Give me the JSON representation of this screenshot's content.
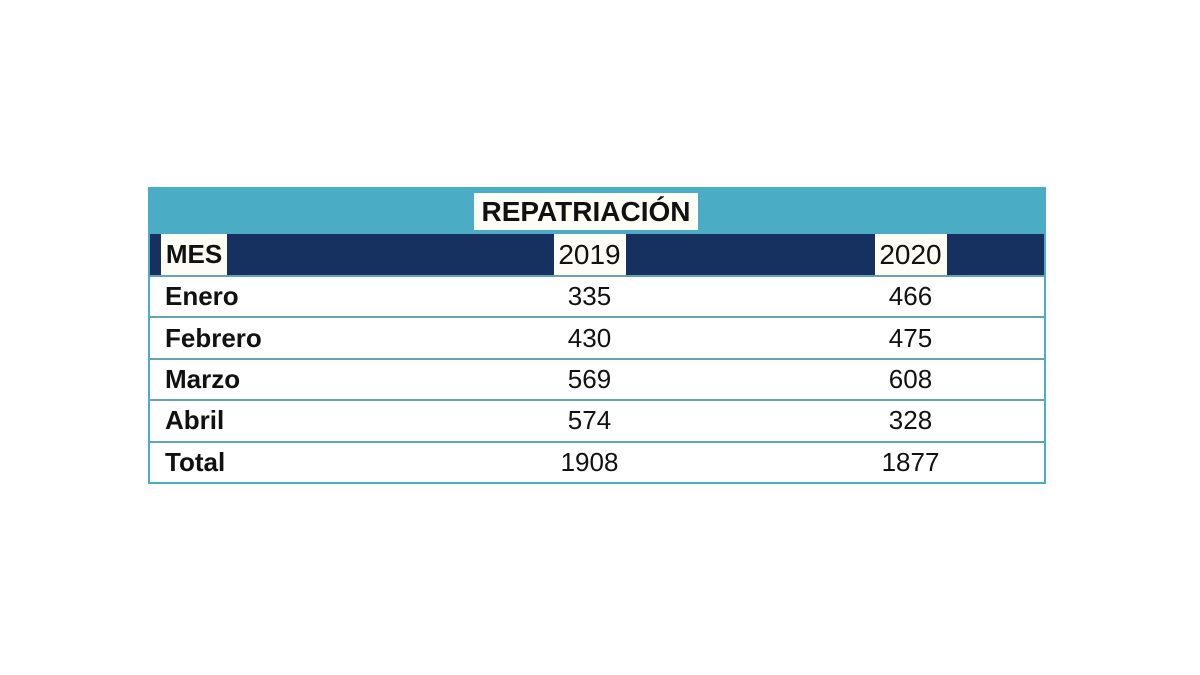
{
  "colors": {
    "title_band_teal": "#4BACC6",
    "header_navy": "#16315F",
    "row_divider": "#64A3B5",
    "chip_background": "#FDFDF6",
    "text": "#111111"
  },
  "chart_data": {
    "type": "table",
    "title": "REPATRIACIÓN",
    "columns": [
      "MES",
      "2019",
      "2020"
    ],
    "rows": [
      [
        "Enero",
        335,
        466
      ],
      [
        "Febrero",
        430,
        475
      ],
      [
        "Marzo",
        569,
        608
      ],
      [
        "Abril",
        574,
        328
      ],
      [
        "Total",
        1908,
        1877
      ]
    ],
    "totals_row_label": "Total",
    "totals": {
      "2019": 1908,
      "2020": 1877
    }
  }
}
